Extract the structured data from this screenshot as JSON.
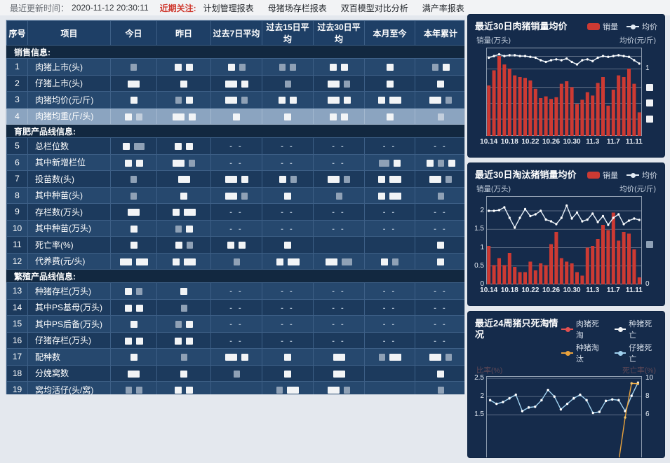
{
  "topbar": {
    "updated_label": "最近更新时间：",
    "updated_time": "2020-11-12 20:30:11",
    "focus_label": "近期关注:",
    "links": [
      "计划管理报表",
      "母猪场存栏报表",
      "双百模型对比分析",
      "满产率报表"
    ]
  },
  "table": {
    "headers": [
      "序号",
      "项目",
      "今日",
      "昨日",
      "过去7日平均",
      "过去15日平均",
      "过去30日平均",
      "本月至今",
      "本年累计"
    ],
    "redaction_note": "all numeric cell values are blurred/redacted in the source screenshot",
    "sections": [
      {
        "title": "销售信息:",
        "rows": [
          {
            "no": "1",
            "item": "肉猪上市(头)",
            "cells": [
              "g",
              "w w",
              "w g",
              "g g",
              "w w",
              "w",
              "g w"
            ]
          },
          {
            "no": "2",
            "item": "仔猪上市(头)",
            "cells": [
              "W",
              "w",
              "W w",
              "g",
              "W g",
              "w",
              "w"
            ]
          },
          {
            "no": "3",
            "item": "肉猪均价(元/斤)",
            "cells": [
              "w",
              "g w",
              "W g",
              "w w",
              "W w",
              "w W",
              "W g"
            ]
          },
          {
            "no": "4",
            "item": "肉猪均重(斤/头)",
            "cells": [
              "w g",
              "W w",
              "w",
              "w",
              "w w",
              "w",
              "g"
            ]
          }
        ]
      },
      {
        "title": "育肥产品线信息:",
        "rows": [
          {
            "no": "5",
            "item": "总栏位数",
            "cells": [
              "w G",
              "w w",
              "--",
              "--",
              "--",
              "--",
              "--"
            ]
          },
          {
            "no": "6",
            "item": "其中新增栏位",
            "cells": [
              "w w",
              "W g",
              "--",
              "--",
              "--",
              "G w",
              "w g w"
            ]
          },
          {
            "no": "7",
            "item": "投苗数(头)",
            "cells": [
              "g",
              "W",
              "W w",
              "w g",
              "W g",
              "w W",
              "W g"
            ]
          },
          {
            "no": "8",
            "item": "其中种苗(头)",
            "cells": [
              "g",
              "w",
              "W g",
              "w",
              "g",
              "w W",
              "g"
            ]
          },
          {
            "no": "9",
            "item": "存栏数(万头)",
            "cells": [
              "W",
              "w W",
              "--",
              "--",
              "--",
              "--",
              "--"
            ]
          },
          {
            "no": "10",
            "item": "其中种苗(万头)",
            "cells": [
              "w",
              "g w",
              "--",
              "--",
              "--",
              "--",
              "--"
            ]
          },
          {
            "no": "11",
            "item": "死亡率(%)",
            "cells": [
              "w",
              "w g",
              "w w",
              "w",
              "",
              "",
              "w"
            ]
          },
          {
            "no": "12",
            "item": "代养费(元/头)",
            "cells": [
              "W W",
              "w W",
              "g",
              "w W",
              "W G",
              "w g",
              "w"
            ]
          }
        ]
      },
      {
        "title": "繁殖产品线信息:",
        "rows": [
          {
            "no": "13",
            "item": "种猪存栏(万头)",
            "cells": [
              "w g",
              "w",
              "--",
              "--",
              "--",
              "--",
              "--"
            ]
          },
          {
            "no": "14",
            "item": "其中PS基母(万头)",
            "cells": [
              "w w",
              "g",
              "--",
              "--",
              "--",
              "--",
              "--"
            ]
          },
          {
            "no": "15",
            "item": "其中PS后备(万头)",
            "cells": [
              "w",
              "g w",
              "--",
              "--",
              "--",
              "--",
              "--"
            ]
          },
          {
            "no": "16",
            "item": "仔猪存栏(万头)",
            "cells": [
              "w w",
              "w w",
              "--",
              "--",
              "--",
              "--",
              "--"
            ]
          },
          {
            "no": "17",
            "item": "配种数",
            "cells": [
              "w",
              "g",
              "W w",
              "w",
              "W",
              "g W",
              "W g"
            ]
          },
          {
            "no": "18",
            "item": "分娩窝数",
            "cells": [
              "W",
              "w",
              "g",
              "w",
              "W",
              "",
              "w"
            ]
          },
          {
            "no": "19",
            "item": "窝均活仔(头/窝)",
            "cells": [
              "g g",
              "w w",
              "",
              "g W",
              "W g",
              "",
              "g"
            ]
          }
        ]
      }
    ]
  },
  "chart_data": [
    {
      "type": "bar+line",
      "title": "最近30日肉猪销量均价",
      "legend_bar": "销量",
      "legend_line": "均价",
      "ylabel_left": "销量(万头)",
      "ylabel_right": "均价(元/斤)",
      "x_ticks": [
        "10.14",
        "10.18",
        "10.22",
        "10.26",
        "10.30",
        "11.3",
        "11.7",
        "11.11"
      ],
      "axis_note": "y-axis tick values redacted in source except right-axis '1'; bar/line values are % of plot height",
      "yticks_right_visible": [
        "1"
      ],
      "bars_pct": [
        60,
        78,
        95,
        85,
        80,
        72,
        70,
        69,
        66,
        56,
        45,
        47,
        44,
        46,
        62,
        65,
        58,
        38,
        43,
        52,
        48,
        63,
        70,
        36,
        55,
        72,
        70,
        80,
        62,
        28
      ],
      "line_pct": [
        93,
        95,
        97,
        95,
        96,
        96,
        95,
        95,
        94,
        93,
        90,
        88,
        90,
        91,
        90,
        92,
        88,
        85,
        90,
        91,
        89,
        93,
        95,
        94,
        95,
        96,
        95,
        94,
        90,
        86
      ],
      "colors": {
        "bar": "#cd3a33",
        "line": "#e3ecf5"
      }
    },
    {
      "type": "bar+line",
      "title": "最近30日淘汰猪销量均价",
      "legend_bar": "销量",
      "legend_line": "均价",
      "ylabel_left": "销量(万头)",
      "ylabel_right": "均价(元/斤)",
      "x_ticks": [
        "10.14",
        "10.18",
        "10.22",
        "10.26",
        "10.30",
        "11.3",
        "11.7",
        "11.11"
      ],
      "ylim_left": [
        0,
        2.4
      ],
      "yticks_left": [
        2,
        1.5,
        1,
        0.5,
        0
      ],
      "yticks_right_visible": [
        "0"
      ],
      "bars": [
        1.1,
        0.55,
        0.75,
        0.55,
        0.9,
        0.5,
        0.35,
        0.35,
        0.65,
        0.4,
        0.6,
        0.55,
        1.15,
        1.5,
        0.75,
        0.65,
        0.6,
        0.35,
        0.25,
        1.05,
        1.1,
        1.3,
        1.7,
        1.55,
        2.05,
        1.25,
        1.5,
        1.45,
        1.0,
        0.2
      ],
      "line": [
        2.1,
        2.1,
        2.12,
        2.2,
        1.9,
        1.62,
        1.9,
        2.15,
        1.95,
        2.0,
        2.1,
        1.85,
        1.8,
        1.72,
        1.9,
        2.25,
        1.88,
        2.05,
        1.8,
        1.85,
        2.02,
        1.78,
        1.95,
        1.7,
        1.9,
        2.0,
        1.72,
        1.82,
        1.88,
        1.84
      ],
      "colors": {
        "bar": "#cd3a33",
        "line": "#e3ecf5"
      }
    },
    {
      "type": "line",
      "title": "最近24周猪只死淘情况",
      "ylabel_left": "比率(%)",
      "ylabel_right": "死亡率(%)",
      "yticks_left_visible": [
        "2.5",
        "2",
        "1.5"
      ],
      "yticks_right_visible": [
        "10",
        "8",
        "6"
      ],
      "legend": [
        {
          "name": "肉猪死淘",
          "color": "#e25050"
        },
        {
          "name": "种猪死亡",
          "color": "#f2f4f6"
        },
        {
          "name": "种猪淘汰",
          "color": "#eaa33c"
        },
        {
          "name": "仔猪死亡",
          "color": "#9fd0ee"
        }
      ],
      "series": [
        {
          "name": "仔猪死亡",
          "axis": "left",
          "values": [
            1.9,
            1.8,
            1.85,
            1.95,
            2.05,
            1.6,
            1.7,
            1.72,
            1.9,
            2.18,
            2.0,
            1.65,
            1.8,
            1.95,
            2.05,
            1.9,
            1.55,
            1.58,
            1.88,
            1.92,
            1.9,
            1.6,
            2.02,
            2.38
          ]
        },
        {
          "name": "种猪淘汰",
          "axis": "right",
          "values": [
            0.9,
            0.9,
            0.9,
            0.9,
            0.9,
            0.9,
            0.9,
            0.9,
            0.9,
            0.9,
            0.9,
            0.9,
            0.9,
            0.9,
            0.9,
            0.9,
            0.9,
            0.9,
            0.9,
            0.9,
            0.9,
            5.7,
            9.45,
            9.4
          ]
        },
        {
          "name": "肉猪死淘",
          "axis": "left",
          "note": "below visible crop of screenshot"
        },
        {
          "name": "种猪死亡",
          "axis": "left",
          "note": "below visible crop of screenshot"
        }
      ]
    }
  ]
}
